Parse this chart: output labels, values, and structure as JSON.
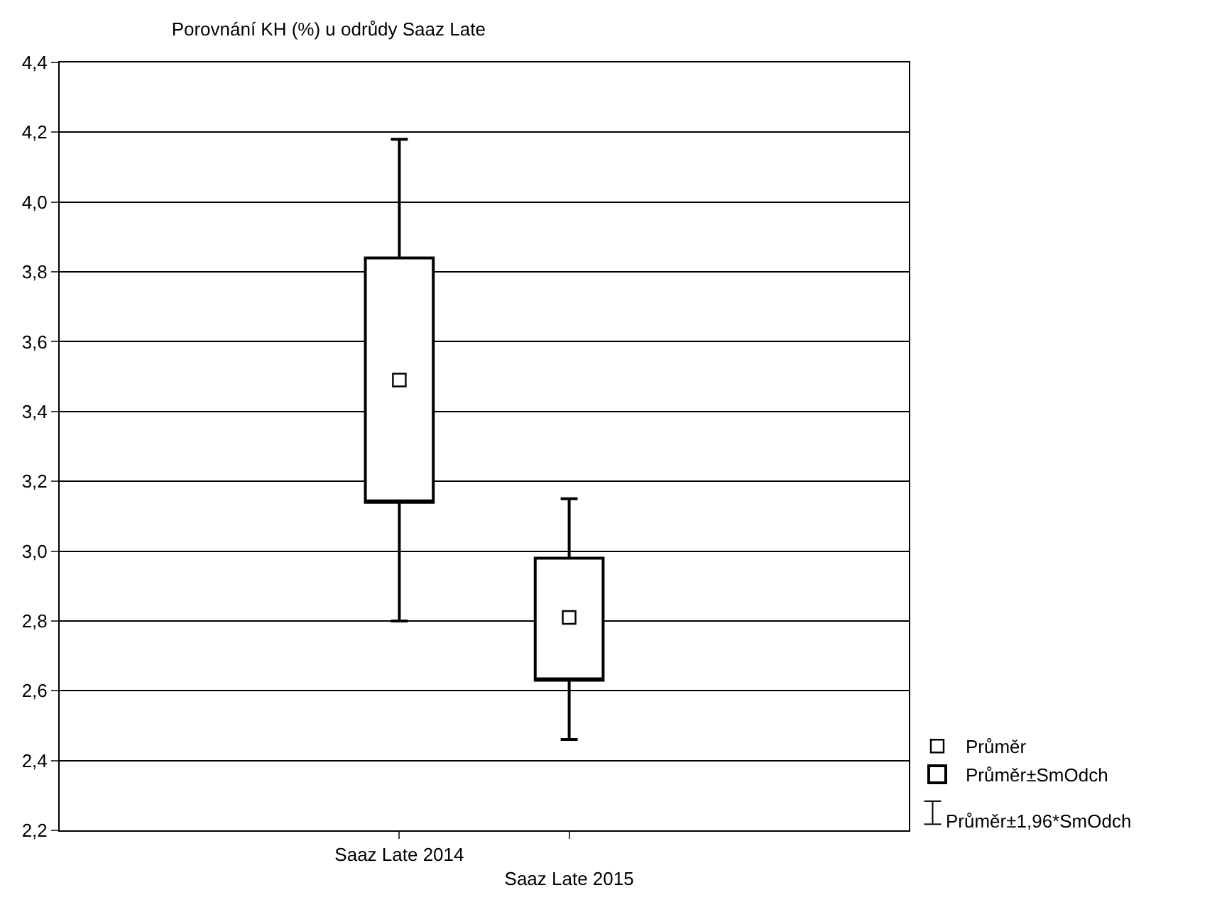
{
  "chart_data": {
    "type": "box",
    "title": "Porovnání KH (%) u odrůdy Saaz Late",
    "categories": [
      "Saaz Late 2014",
      "Saaz Late 2015"
    ],
    "series": [
      {
        "name": "Průměr±SmOdch",
        "color": "#000000",
        "boxes": [
          {
            "low": 2.8,
            "q1": 3.14,
            "q3": 3.84,
            "high": 4.18
          },
          {
            "low": 2.46,
            "q1": 2.63,
            "q3": 2.98,
            "high": 3.15
          }
        ]
      },
      {
        "name": "Průměr",
        "type": "scatter",
        "marker": "square",
        "color": "#000000",
        "values": [
          3.49,
          2.81
        ]
      }
    ],
    "annotations": [
      "Průměr±1,96*SmOdch"
    ],
    "ylim": [
      2.2,
      4.4
    ],
    "yticks": [
      {
        "value": 2.2,
        "label": "2,2"
      },
      {
        "value": 2.4,
        "label": "2,4"
      },
      {
        "value": 2.6,
        "label": "2,6"
      },
      {
        "value": 2.8,
        "label": "2,8"
      },
      {
        "value": 3.0,
        "label": "3,0"
      },
      {
        "value": 3.2,
        "label": "3,2"
      },
      {
        "value": 3.4,
        "label": "3,4"
      },
      {
        "value": 3.6,
        "label": "3,6"
      },
      {
        "value": 3.8,
        "label": "3,8"
      },
      {
        "value": 4.0,
        "label": "4,0"
      },
      {
        "value": 4.2,
        "label": "4,2"
      },
      {
        "value": 4.4,
        "label": "4,4"
      }
    ],
    "grid": "y",
    "legend": "bottom right"
  }
}
